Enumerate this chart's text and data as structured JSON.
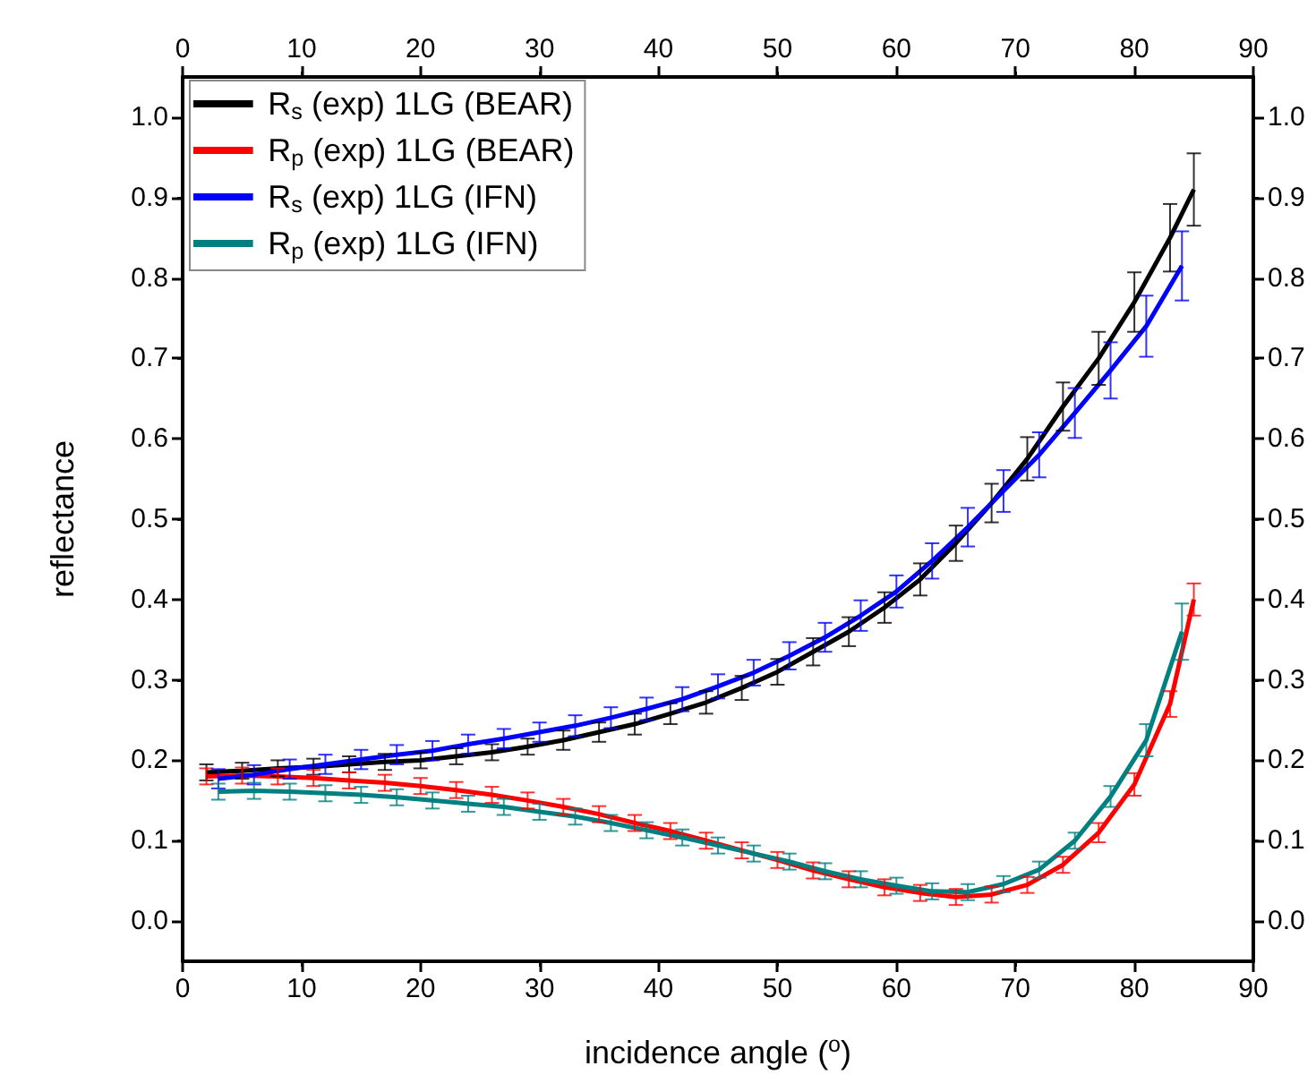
{
  "chart_data": {
    "type": "line",
    "xlabel": "incidence angle ($^{o}$)",
    "ylabel": "reflectance",
    "x": [
      2,
      5,
      8,
      11,
      14,
      17,
      20,
      23,
      26,
      29,
      32,
      35,
      38,
      41,
      44,
      47,
      50,
      53,
      56,
      59,
      62,
      65,
      68,
      71,
      74,
      77,
      80,
      83,
      85
    ],
    "series": [
      {
        "name": "R$_{s}$ (exp) 1LG (BEAR)",
        "color": "#000000",
        "values": [
          0.185,
          0.187,
          0.19,
          0.192,
          0.195,
          0.198,
          0.2,
          0.205,
          0.21,
          0.217,
          0.225,
          0.235,
          0.245,
          0.258,
          0.272,
          0.29,
          0.31,
          0.335,
          0.36,
          0.39,
          0.425,
          0.47,
          0.52,
          0.575,
          0.64,
          0.7,
          0.77,
          0.85,
          0.91
        ],
        "errors": [
          0.01,
          0.01,
          0.01,
          0.01,
          0.01,
          0.01,
          0.01,
          0.01,
          0.01,
          0.01,
          0.012,
          0.012,
          0.013,
          0.013,
          0.014,
          0.015,
          0.016,
          0.017,
          0.018,
          0.019,
          0.02,
          0.022,
          0.024,
          0.027,
          0.03,
          0.033,
          0.037,
          0.042,
          0.045
        ]
      },
      {
        "name": "R$_{p}$ (exp) 1LG (BEAR)",
        "color": "#ff0000",
        "values": [
          0.18,
          0.181,
          0.18,
          0.178,
          0.175,
          0.172,
          0.168,
          0.163,
          0.157,
          0.15,
          0.142,
          0.133,
          0.122,
          0.112,
          0.1,
          0.088,
          0.076,
          0.063,
          0.052,
          0.042,
          0.035,
          0.03,
          0.033,
          0.045,
          0.07,
          0.11,
          0.17,
          0.27,
          0.4
        ],
        "errors": [
          0.01,
          0.01,
          0.01,
          0.01,
          0.01,
          0.01,
          0.01,
          0.01,
          0.01,
          0.01,
          0.01,
          0.01,
          0.01,
          0.01,
          0.01,
          0.01,
          0.01,
          0.01,
          0.01,
          0.01,
          0.01,
          0.01,
          0.01,
          0.01,
          0.01,
          0.012,
          0.014,
          0.016,
          0.02
        ]
      },
      {
        "name": "R$_{s}$ (exp) 1LG (IFN)",
        "color": "#0000ff",
        "x": [
          3,
          6,
          9,
          12,
          15,
          18,
          21,
          24,
          27,
          30,
          33,
          36,
          39,
          42,
          45,
          48,
          51,
          54,
          57,
          60,
          63,
          66,
          69,
          72,
          75,
          78,
          81,
          84
        ],
        "values": [
          0.177,
          0.182,
          0.189,
          0.195,
          0.201,
          0.207,
          0.212,
          0.22,
          0.227,
          0.235,
          0.243,
          0.253,
          0.264,
          0.276,
          0.292,
          0.309,
          0.33,
          0.353,
          0.38,
          0.41,
          0.448,
          0.49,
          0.535,
          0.58,
          0.632,
          0.685,
          0.74,
          0.815
        ],
        "errors": [
          0.012,
          0.012,
          0.012,
          0.012,
          0.012,
          0.012,
          0.012,
          0.012,
          0.012,
          0.012,
          0.013,
          0.013,
          0.014,
          0.015,
          0.015,
          0.016,
          0.017,
          0.018,
          0.019,
          0.02,
          0.022,
          0.024,
          0.026,
          0.028,
          0.031,
          0.035,
          0.038,
          0.043
        ]
      },
      {
        "name": "R$_{p}$ (exp) 1LG (IFN)",
        "color": "#008080",
        "x": [
          3,
          6,
          9,
          12,
          15,
          18,
          21,
          24,
          27,
          30,
          33,
          36,
          39,
          42,
          45,
          48,
          51,
          54,
          57,
          60,
          63,
          66,
          69,
          72,
          75,
          78,
          81,
          84
        ],
        "values": [
          0.161,
          0.162,
          0.161,
          0.159,
          0.157,
          0.154,
          0.15,
          0.146,
          0.142,
          0.136,
          0.13,
          0.122,
          0.113,
          0.104,
          0.094,
          0.084,
          0.074,
          0.062,
          0.052,
          0.044,
          0.037,
          0.036,
          0.046,
          0.064,
          0.1,
          0.155,
          0.225,
          0.36
        ],
        "errors": [
          0.01,
          0.01,
          0.01,
          0.01,
          0.01,
          0.01,
          0.01,
          0.01,
          0.01,
          0.01,
          0.01,
          0.01,
          0.01,
          0.01,
          0.01,
          0.01,
          0.01,
          0.01,
          0.01,
          0.01,
          0.01,
          0.01,
          0.01,
          0.01,
          0.01,
          0.013,
          0.02,
          0.035
        ]
      }
    ],
    "xlim": [
      0,
      90
    ],
    "xticks": [
      0,
      10,
      20,
      30,
      40,
      50,
      60,
      70,
      80,
      90
    ],
    "x2lim": [
      0,
      90
    ],
    "x2ticks": [
      0,
      10,
      20,
      30,
      40,
      50,
      60,
      70,
      80,
      90
    ],
    "ylim": [
      -0.05,
      1.05
    ],
    "yticks": [
      {
        "value": 0,
        "label": "0.0"
      },
      0.1,
      0.2,
      0.3,
      0.4,
      0.5,
      0.6,
      0.7,
      0.8,
      0.9,
      {
        "value": 1,
        "label": "1.0"
      }
    ],
    "y2lim": [
      -0.05,
      1.05
    ],
    "y2ticks": [
      {
        "value": 0,
        "label": "0.0"
      },
      0.1,
      0.2,
      0.3,
      0.4,
      0.5,
      0.6,
      0.7,
      0.8,
      0.9,
      {
        "value": 1,
        "label": "1.0"
      }
    ],
    "legend": "top left",
    "grid": false,
    "marker": "none",
    "line_style": "solid"
  }
}
